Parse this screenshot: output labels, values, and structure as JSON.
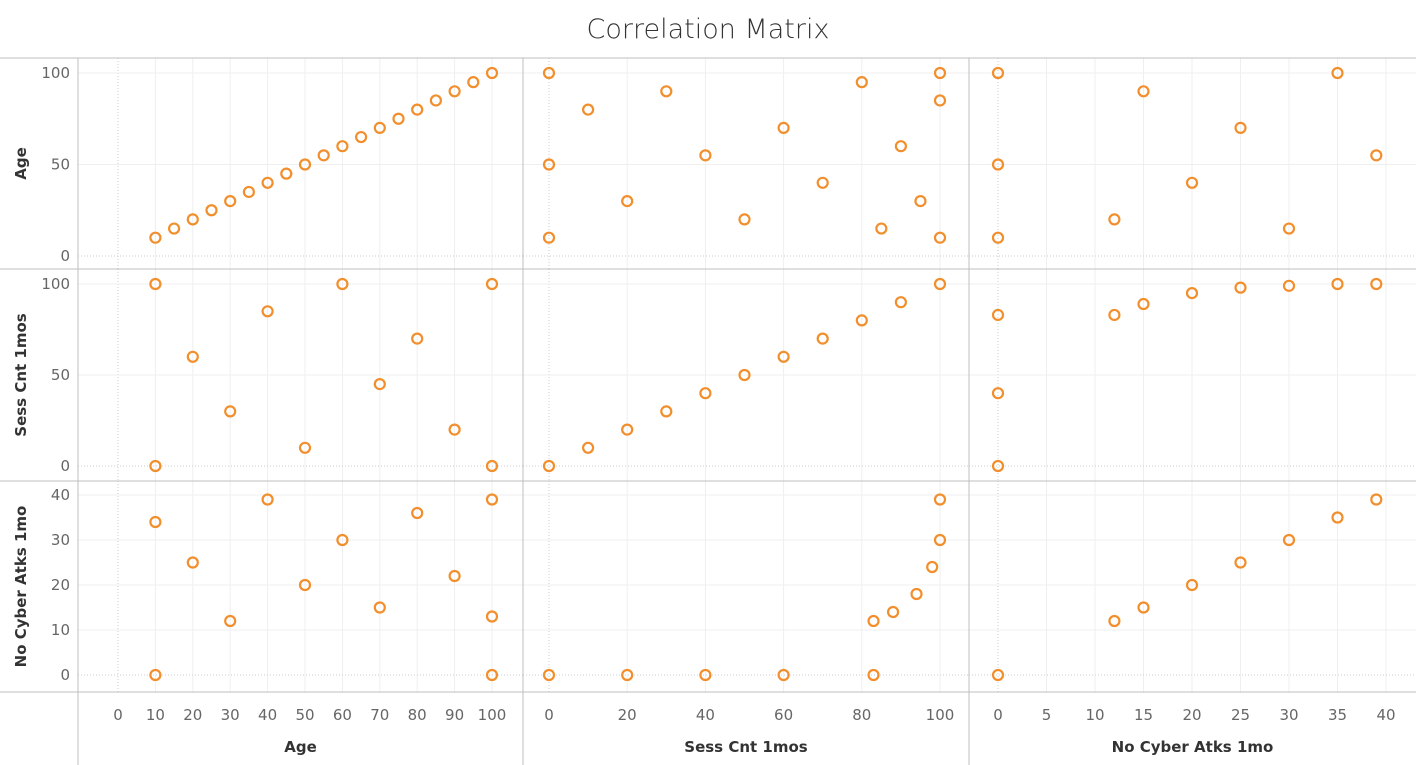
{
  "chart_data": {
    "type": "scatter",
    "title": "Correlation Matrix",
    "variables": [
      "Age",
      "Sess Cnt 1mos",
      "No Cyber Atks 1mo"
    ],
    "marker": {
      "shape": "open-circle",
      "color": "#f28e2b"
    },
    "axes": {
      "Age": {
        "range": [
          0,
          100
        ],
        "ticks": [
          0,
          50,
          100
        ],
        "bottom_ticks": [
          0,
          10,
          20,
          30,
          40,
          50,
          60,
          70,
          80,
          90,
          100
        ]
      },
      "Sess Cnt 1mos": {
        "range": [
          0,
          100
        ],
        "ticks": [
          0,
          50,
          100
        ],
        "bottom_ticks": [
          0,
          20,
          40,
          60,
          80,
          100
        ]
      },
      "No Cyber Atks 1mo": {
        "range": [
          0,
          40
        ],
        "ticks": [
          0,
          10,
          20,
          30,
          40
        ],
        "bottom_ticks": [
          0,
          5,
          10,
          15,
          20,
          25,
          30,
          35,
          40
        ]
      }
    },
    "panels": [
      {
        "row": "Age",
        "col": "Age",
        "points": [
          [
            10,
            10
          ],
          [
            15,
            15
          ],
          [
            20,
            20
          ],
          [
            25,
            25
          ],
          [
            30,
            30
          ],
          [
            35,
            35
          ],
          [
            40,
            40
          ],
          [
            45,
            45
          ],
          [
            50,
            50
          ],
          [
            55,
            55
          ],
          [
            60,
            60
          ],
          [
            65,
            65
          ],
          [
            70,
            70
          ],
          [
            75,
            75
          ],
          [
            80,
            80
          ],
          [
            85,
            85
          ],
          [
            90,
            90
          ],
          [
            95,
            95
          ],
          [
            100,
            100
          ]
        ]
      },
      {
        "row": "Age",
        "col": "Sess Cnt 1mos",
        "points": [
          [
            0,
            10
          ],
          [
            0,
            50
          ],
          [
            0,
            100
          ],
          [
            10,
            80
          ],
          [
            20,
            30
          ],
          [
            30,
            90
          ],
          [
            40,
            55
          ],
          [
            50,
            20
          ],
          [
            60,
            70
          ],
          [
            70,
            40
          ],
          [
            80,
            95
          ],
          [
            85,
            15
          ],
          [
            90,
            60
          ],
          [
            95,
            30
          ],
          [
            100,
            85
          ],
          [
            100,
            10
          ],
          [
            100,
            100
          ]
        ]
      },
      {
        "row": "Age",
        "col": "No Cyber Atks 1mo",
        "points": [
          [
            0,
            10
          ],
          [
            0,
            50
          ],
          [
            0,
            100
          ],
          [
            12,
            20
          ],
          [
            15,
            90
          ],
          [
            20,
            40
          ],
          [
            25,
            70
          ],
          [
            30,
            15
          ],
          [
            35,
            100
          ],
          [
            39,
            55
          ]
        ]
      },
      {
        "row": "Sess Cnt 1mos",
        "col": "Age",
        "points": [
          [
            10,
            100
          ],
          [
            10,
            0
          ],
          [
            20,
            60
          ],
          [
            30,
            30
          ],
          [
            40,
            85
          ],
          [
            50,
            10
          ],
          [
            60,
            100
          ],
          [
            70,
            45
          ],
          [
            80,
            70
          ],
          [
            90,
            20
          ],
          [
            100,
            100
          ],
          [
            100,
            0
          ]
        ]
      },
      {
        "row": "Sess Cnt 1mos",
        "col": "Sess Cnt 1mos",
        "points": [
          [
            0,
            0
          ],
          [
            10,
            10
          ],
          [
            20,
            20
          ],
          [
            30,
            30
          ],
          [
            40,
            40
          ],
          [
            50,
            50
          ],
          [
            60,
            60
          ],
          [
            70,
            70
          ],
          [
            80,
            80
          ],
          [
            90,
            90
          ],
          [
            100,
            100
          ]
        ]
      },
      {
        "row": "Sess Cnt 1mos",
        "col": "No Cyber Atks 1mo",
        "points": [
          [
            0,
            0
          ],
          [
            0,
            40
          ],
          [
            0,
            83
          ],
          [
            12,
            83
          ],
          [
            15,
            89
          ],
          [
            20,
            95
          ],
          [
            25,
            98
          ],
          [
            30,
            99
          ],
          [
            35,
            100
          ],
          [
            39,
            100
          ]
        ]
      },
      {
        "row": "No Cyber Atks 1mo",
        "col": "Age",
        "points": [
          [
            10,
            0
          ],
          [
            10,
            34
          ],
          [
            20,
            25
          ],
          [
            30,
            12
          ],
          [
            40,
            39
          ],
          [
            50,
            20
          ],
          [
            60,
            30
          ],
          [
            70,
            15
          ],
          [
            80,
            36
          ],
          [
            90,
            22
          ],
          [
            100,
            0
          ],
          [
            100,
            13
          ],
          [
            100,
            39
          ]
        ]
      },
      {
        "row": "No Cyber Atks 1mo",
        "col": "Sess Cnt 1mos",
        "points": [
          [
            0,
            0
          ],
          [
            20,
            0
          ],
          [
            40,
            0
          ],
          [
            60,
            0
          ],
          [
            83,
            0
          ],
          [
            83,
            12
          ],
          [
            88,
            14
          ],
          [
            94,
            18
          ],
          [
            98,
            24
          ],
          [
            100,
            30
          ],
          [
            100,
            39
          ]
        ]
      },
      {
        "row": "No Cyber Atks 1mo",
        "col": "No Cyber Atks 1mo",
        "points": [
          [
            0,
            0
          ],
          [
            12,
            12
          ],
          [
            15,
            15
          ],
          [
            20,
            20
          ],
          [
            25,
            25
          ],
          [
            30,
            30
          ],
          [
            35,
            35
          ],
          [
            39,
            39
          ]
        ]
      }
    ],
    "grid": true,
    "legend": "none"
  }
}
